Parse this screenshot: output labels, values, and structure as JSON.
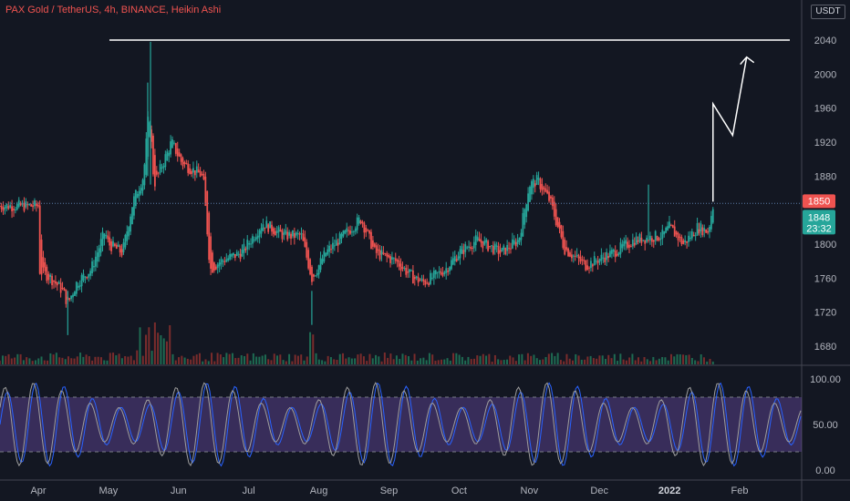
{
  "header": {
    "symbol": "PAX Gold / TetherUS, 4h, BINANCE, Heikin Ashi",
    "currency": "USDT"
  },
  "colors": {
    "background": "#131722",
    "up": "#26a69a",
    "down": "#ef5350",
    "stoch_k": "#2962ff",
    "stoch_d": "#9e9e9e",
    "stoch_band": "#7e57c2",
    "annotation": "#ffffff"
  },
  "price_axis": {
    "ticks": [
      "2040",
      "2000",
      "1960",
      "1920",
      "1880",
      "1800",
      "1760",
      "1720",
      "1680"
    ],
    "last_price_label": "1850",
    "current_label": "1848",
    "countdown": "23:32"
  },
  "stoch_axis": {
    "ticks": [
      "100.00",
      "50.00",
      "0.00"
    ]
  },
  "time_axis": {
    "ticks": [
      "Apr",
      "May",
      "Jun",
      "Jul",
      "Aug",
      "Sep",
      "Oct",
      "Nov",
      "Dec",
      "2022",
      "Feb"
    ]
  },
  "chart_data": {
    "type": "candlestick",
    "price_ylim": [
      1660,
      2062
    ],
    "price_path": [
      {
        "t": 0,
        "v": 1770
      },
      {
        "t": 0.18,
        "v": 1760
      },
      {
        "t": 0.35,
        "v": 1745
      },
      {
        "t": 0.42,
        "v": 1730
      },
      {
        "t": 0.55,
        "v": 1755
      },
      {
        "t": 0.75,
        "v": 1770
      },
      {
        "t": 0.95,
        "v": 1815
      },
      {
        "t": 1.0,
        "v": 1800
      },
      {
        "t": 1.2,
        "v": 1790
      },
      {
        "t": 1.35,
        "v": 1850
      },
      {
        "t": 1.5,
        "v": 1880
      },
      {
        "t": 1.58,
        "v": 1960
      },
      {
        "t": 1.65,
        "v": 1870
      },
      {
        "t": 1.9,
        "v": 1920
      },
      {
        "t": 2.05,
        "v": 1895
      },
      {
        "t": 2.35,
        "v": 1880
      },
      {
        "t": 2.45,
        "v": 1770
      },
      {
        "t": 2.6,
        "v": 1780
      },
      {
        "t": 2.9,
        "v": 1790
      },
      {
        "t": 3.2,
        "v": 1825
      },
      {
        "t": 3.5,
        "v": 1810
      },
      {
        "t": 3.75,
        "v": 1810
      },
      {
        "t": 3.9,
        "v": 1760
      },
      {
        "t": 4.1,
        "v": 1790
      },
      {
        "t": 4.35,
        "v": 1810
      },
      {
        "t": 4.6,
        "v": 1830
      },
      {
        "t": 4.8,
        "v": 1790
      },
      {
        "t": 5.1,
        "v": 1780
      },
      {
        "t": 5.35,
        "v": 1760
      },
      {
        "t": 5.5,
        "v": 1755
      },
      {
        "t": 5.8,
        "v": 1770
      },
      {
        "t": 6.0,
        "v": 1790
      },
      {
        "t": 6.25,
        "v": 1805
      },
      {
        "t": 6.6,
        "v": 1790
      },
      {
        "t": 6.85,
        "v": 1805
      },
      {
        "t": 7.0,
        "v": 1870
      },
      {
        "t": 7.12,
        "v": 1875
      },
      {
        "t": 7.3,
        "v": 1850
      },
      {
        "t": 7.5,
        "v": 1795
      },
      {
        "t": 7.8,
        "v": 1775
      },
      {
        "t": 8.2,
        "v": 1790
      },
      {
        "t": 8.5,
        "v": 1805
      },
      {
        "t": 8.9,
        "v": 1810
      },
      {
        "t": 9.0,
        "v": 1820
      },
      {
        "t": 9.2,
        "v": 1800
      },
      {
        "t": 9.4,
        "v": 1820
      },
      {
        "t": 9.55,
        "v": 1815
      },
      {
        "t": 9.62,
        "v": 1845
      }
    ],
    "resistance_level": 2040,
    "projection": [
      {
        "t": 9.62,
        "v": 1850
      },
      {
        "t": 9.62,
        "v": 1965
      },
      {
        "t": 9.9,
        "v": 1928
      },
      {
        "t": 10.1,
        "v": 2020
      }
    ],
    "months": [
      {
        "t": 0,
        "label": "Apr"
      },
      {
        "t": 1,
        "label": "May"
      },
      {
        "t": 2,
        "label": "Jun"
      },
      {
        "t": 3,
        "label": "Jul"
      },
      {
        "t": 4,
        "label": "Aug"
      },
      {
        "t": 5,
        "label": "Sep"
      },
      {
        "t": 6,
        "label": "Oct"
      },
      {
        "t": 7,
        "label": "Nov"
      },
      {
        "t": 8,
        "label": "Dec"
      },
      {
        "t": 9,
        "label": "2022"
      },
      {
        "t": 10,
        "label": "Feb"
      }
    ],
    "stoch_ylim": [
      0,
      100
    ],
    "stoch_bands": [
      20,
      80
    ]
  }
}
